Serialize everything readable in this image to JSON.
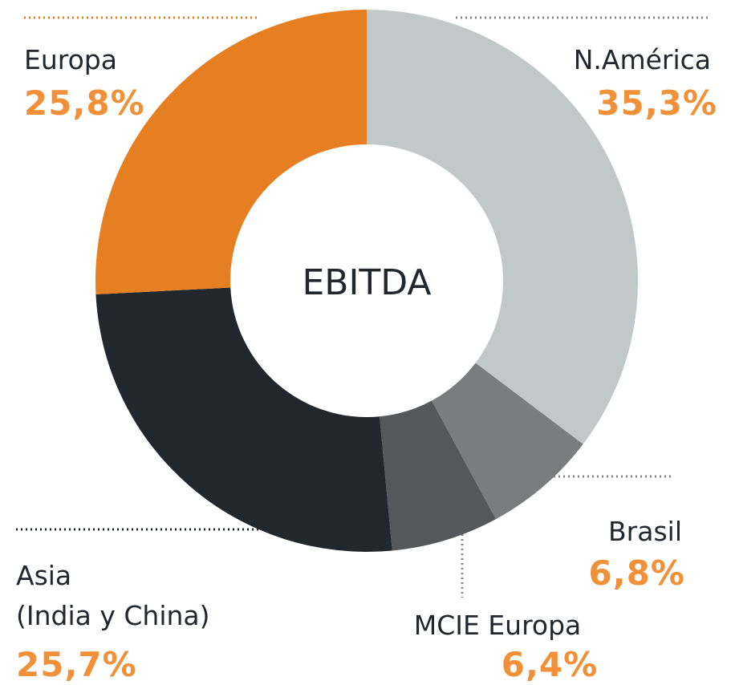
{
  "chart_data": {
    "type": "donut",
    "title": "EBITDA",
    "categories": [
      "N.América",
      "Brasil",
      "MCIE Europa",
      "Asia\n(India y China)",
      "Europa"
    ],
    "values": [
      35.3,
      6.8,
      6.4,
      25.7,
      25.8
    ],
    "value_labels": [
      "35,3%",
      "6,8%",
      "6,4%",
      "25,7%",
      "25,8%"
    ],
    "colors": [
      "#c2c8c8",
      "#7a7d7d",
      "#54585b",
      "#22272d",
      "#e67e22"
    ]
  }
}
